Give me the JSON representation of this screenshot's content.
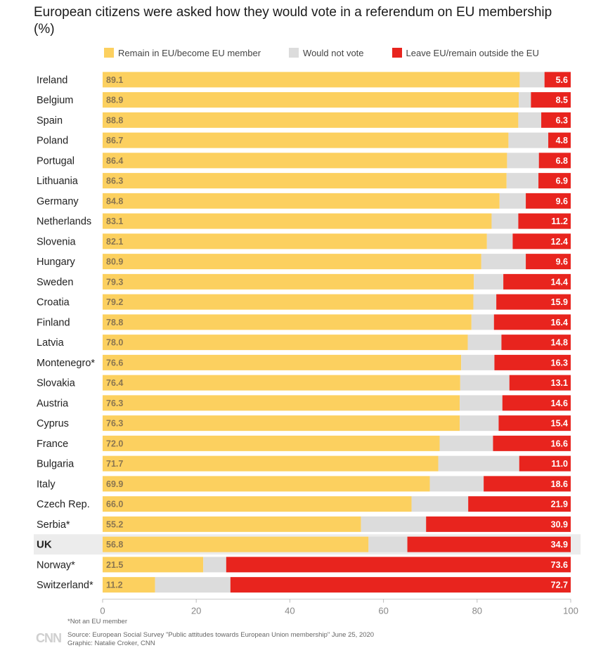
{
  "title": "European citizens were asked how they would vote in a referendum on EU membership (%)",
  "legend": {
    "remain": "Remain in EU/become EU member",
    "notvote": "Would not vote",
    "leave": "Leave EU/remain outside the EU"
  },
  "colors": {
    "remain": "#fcd05f",
    "notvote": "#dcdcdc",
    "leave": "#e8241e",
    "highlight": "#ececec"
  },
  "footnote": "*Not an EU member",
  "source_line": "Source: European Social Survey \"Public attitudes towards European Union membership\" June 25, 2020",
  "graphic_line": "Graphic: Natalie Croker, CNN",
  "logo": "CNN",
  "chart_data": {
    "type": "bar",
    "orientation": "horizontal",
    "stacked": true,
    "title": "European citizens were asked how they would vote in a referendum on EU membership (%)",
    "xlabel": "",
    "ylabel": "",
    "xlim": [
      0,
      100
    ],
    "xticks": [
      0,
      20,
      40,
      60,
      80,
      100
    ],
    "legend_position": "top",
    "highlight": "UK",
    "categories": [
      "Ireland",
      "Belgium",
      "Spain",
      "Poland",
      "Portugal",
      "Lithuania",
      "Germany",
      "Netherlands",
      "Slovenia",
      "Hungary",
      "Sweden",
      "Croatia",
      "Finland",
      "Latvia",
      "Montenegro*",
      "Slovakia",
      "Austria",
      "Cyprus",
      "France",
      "Bulgaria",
      "Italy",
      "Czech Rep.",
      "Serbia*",
      "UK",
      "Norway*",
      "Switzerland*"
    ],
    "series": [
      {
        "name": "Remain in EU/become EU member",
        "labels": [
          "89.1",
          "88.9",
          "88.8",
          "86.7",
          "86.4",
          "86.3",
          "84.8",
          "83.1",
          "82.1",
          "80.9",
          "79.3",
          "79.2",
          "78.8",
          "78.0",
          "76.6",
          "76.4",
          "76.3",
          "76.3",
          "72.0",
          "71.7",
          "69.9",
          "66.0",
          "55.2",
          "56.8",
          "21.5",
          "11.2"
        ]
      },
      {
        "name": "Would not vote",
        "values": [
          5.3,
          2.6,
          4.9,
          8.5,
          6.8,
          6.8,
          5.6,
          5.7,
          5.5,
          9.5,
          6.3,
          4.9,
          4.8,
          7.2,
          7.1,
          10.5,
          9.1,
          8.3,
          11.4,
          17.3,
          11.5,
          12.1,
          13.9,
          8.3,
          4.9,
          16.1
        ]
      },
      {
        "name": "Leave EU/remain outside the EU",
        "labels": [
          "5.6",
          "8.5",
          "6.3",
          "4.8",
          "6.8",
          "6.9",
          "9.6",
          "11.2",
          "12.4",
          "9.6",
          "14.4",
          "15.9",
          "16.4",
          "14.8",
          "16.3",
          "13.1",
          "14.6",
          "15.4",
          "16.6",
          "11.0",
          "18.6",
          "21.9",
          "30.9",
          "34.9",
          "73.6",
          "72.7"
        ]
      }
    ]
  }
}
